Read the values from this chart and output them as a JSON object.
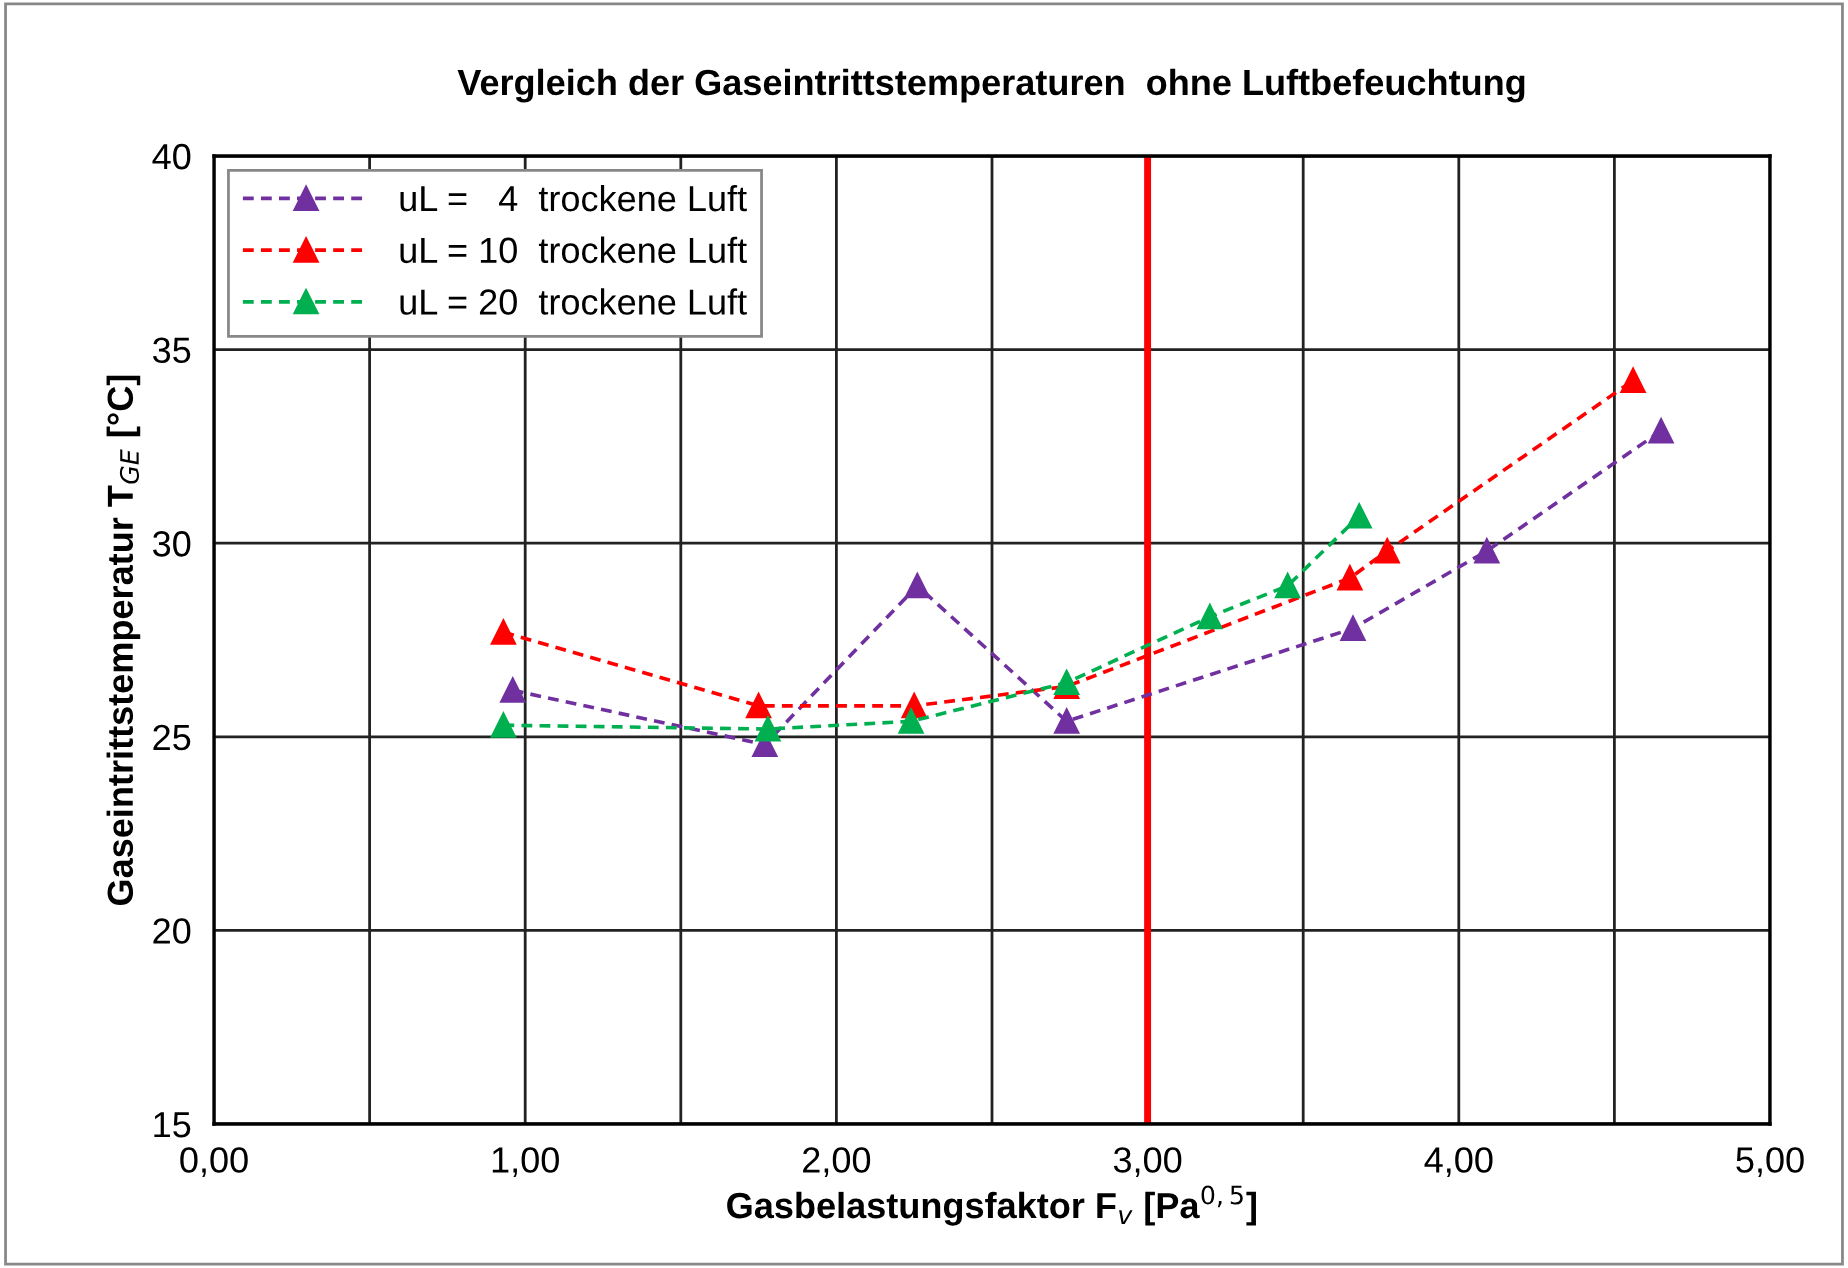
{
  "chart_data": {
    "type": "line",
    "title": "Vergleich der Gaseintrittstemperaturen  ohne Luftbefeuchtung",
    "xlabel": "Gasbelastungsfaktor F$_{v}$ [Pa$^{0,5}$]",
    "ylabel": "Gaseintrittstemperatur T$_{GE}$ [°C]",
    "xlim": [
      0,
      5
    ],
    "ylim": [
      15,
      40
    ],
    "xticks": [
      {
        "value": 0,
        "label": "0,00"
      },
      {
        "value": 0.5,
        "label": null
      },
      {
        "value": 1,
        "label": "1,00"
      },
      {
        "value": 1.5,
        "label": null
      },
      {
        "value": 2,
        "label": "2,00"
      },
      {
        "value": 2.5,
        "label": null
      },
      {
        "value": 3,
        "label": "3,00"
      },
      {
        "value": 3.5,
        "label": null
      },
      {
        "value": 4,
        "label": "4,00"
      },
      {
        "value": 4.5,
        "label": null
      },
      {
        "value": 5,
        "label": "5,00"
      }
    ],
    "yticks": [
      15,
      20,
      25,
      30,
      35,
      40
    ],
    "grid": true,
    "legend": "top left",
    "marker": "triangle",
    "line_style": "dashed",
    "ref_lines": [
      {
        "axis": "x",
        "value": 3,
        "color": "#ff0000"
      }
    ],
    "series": [
      {
        "name": "uL =   4  trockene Luft",
        "color": "#7030a0",
        "x": [
          0.96,
          1.77,
          2.26,
          2.74,
          3.66,
          4.09,
          4.65
        ],
        "values": [
          26.2,
          24.8,
          28.9,
          25.4,
          27.8,
          29.8,
          32.9
        ]
      },
      {
        "name": "uL = 10  trockene Luft",
        "color": "#ff0000",
        "x": [
          0.93,
          1.75,
          2.25,
          2.74,
          3.65,
          3.77,
          4.56
        ],
        "values": [
          27.7,
          25.8,
          25.8,
          26.3,
          29.1,
          29.8,
          34.2
        ]
      },
      {
        "name": "uL = 20  trockene Luft",
        "color": "#00b050",
        "x": [
          0.93,
          1.78,
          2.24,
          2.74,
          3.2,
          3.45,
          3.68
        ],
        "values": [
          25.3,
          25.2,
          25.4,
          26.4,
          28.1,
          28.9,
          30.7
        ]
      }
    ]
  }
}
